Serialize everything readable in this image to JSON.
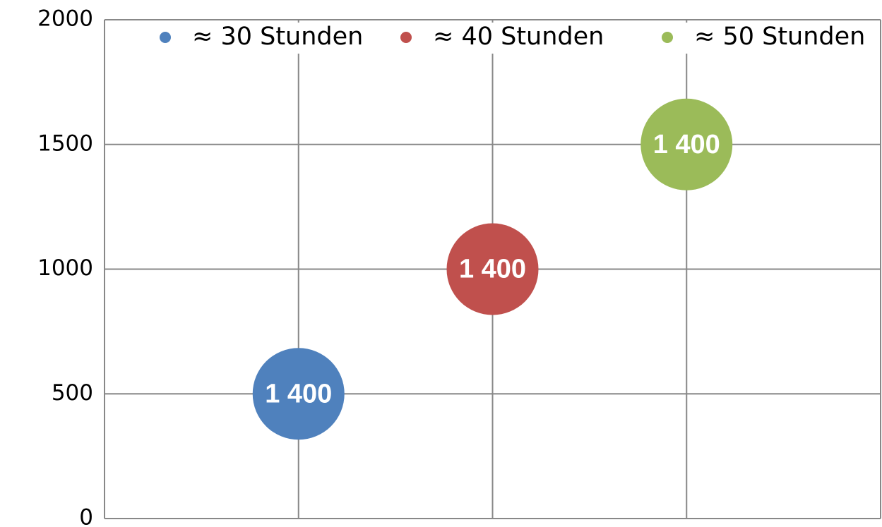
{
  "chart_data": {
    "type": "bubble",
    "series": [
      {
        "name": "≈ 30 Stunden",
        "color": "#4f81bd",
        "x": [
          1
        ],
        "values": [
          500
        ],
        "sizes": [
          1400
        ],
        "value_labels": [
          "1 400"
        ]
      },
      {
        "name": "≈ 40 Stunden",
        "color": "#c0504d",
        "x": [
          2
        ],
        "values": [
          1000
        ],
        "sizes": [
          1400
        ],
        "value_labels": [
          "1 400"
        ]
      },
      {
        "name": "≈ 50 Stunden",
        "color": "#9bbb59",
        "x": [
          3
        ],
        "values": [
          1500
        ],
        "sizes": [
          1400
        ],
        "value_labels": [
          "1 400"
        ]
      }
    ],
    "xlim": [
      0,
      4
    ],
    "xticks": [
      0,
      1,
      2,
      3,
      4
    ],
    "ylim": [
      0,
      2000
    ],
    "yticks": [
      0,
      500,
      1000,
      1500,
      2000
    ],
    "grid": true,
    "legend": "top"
  }
}
